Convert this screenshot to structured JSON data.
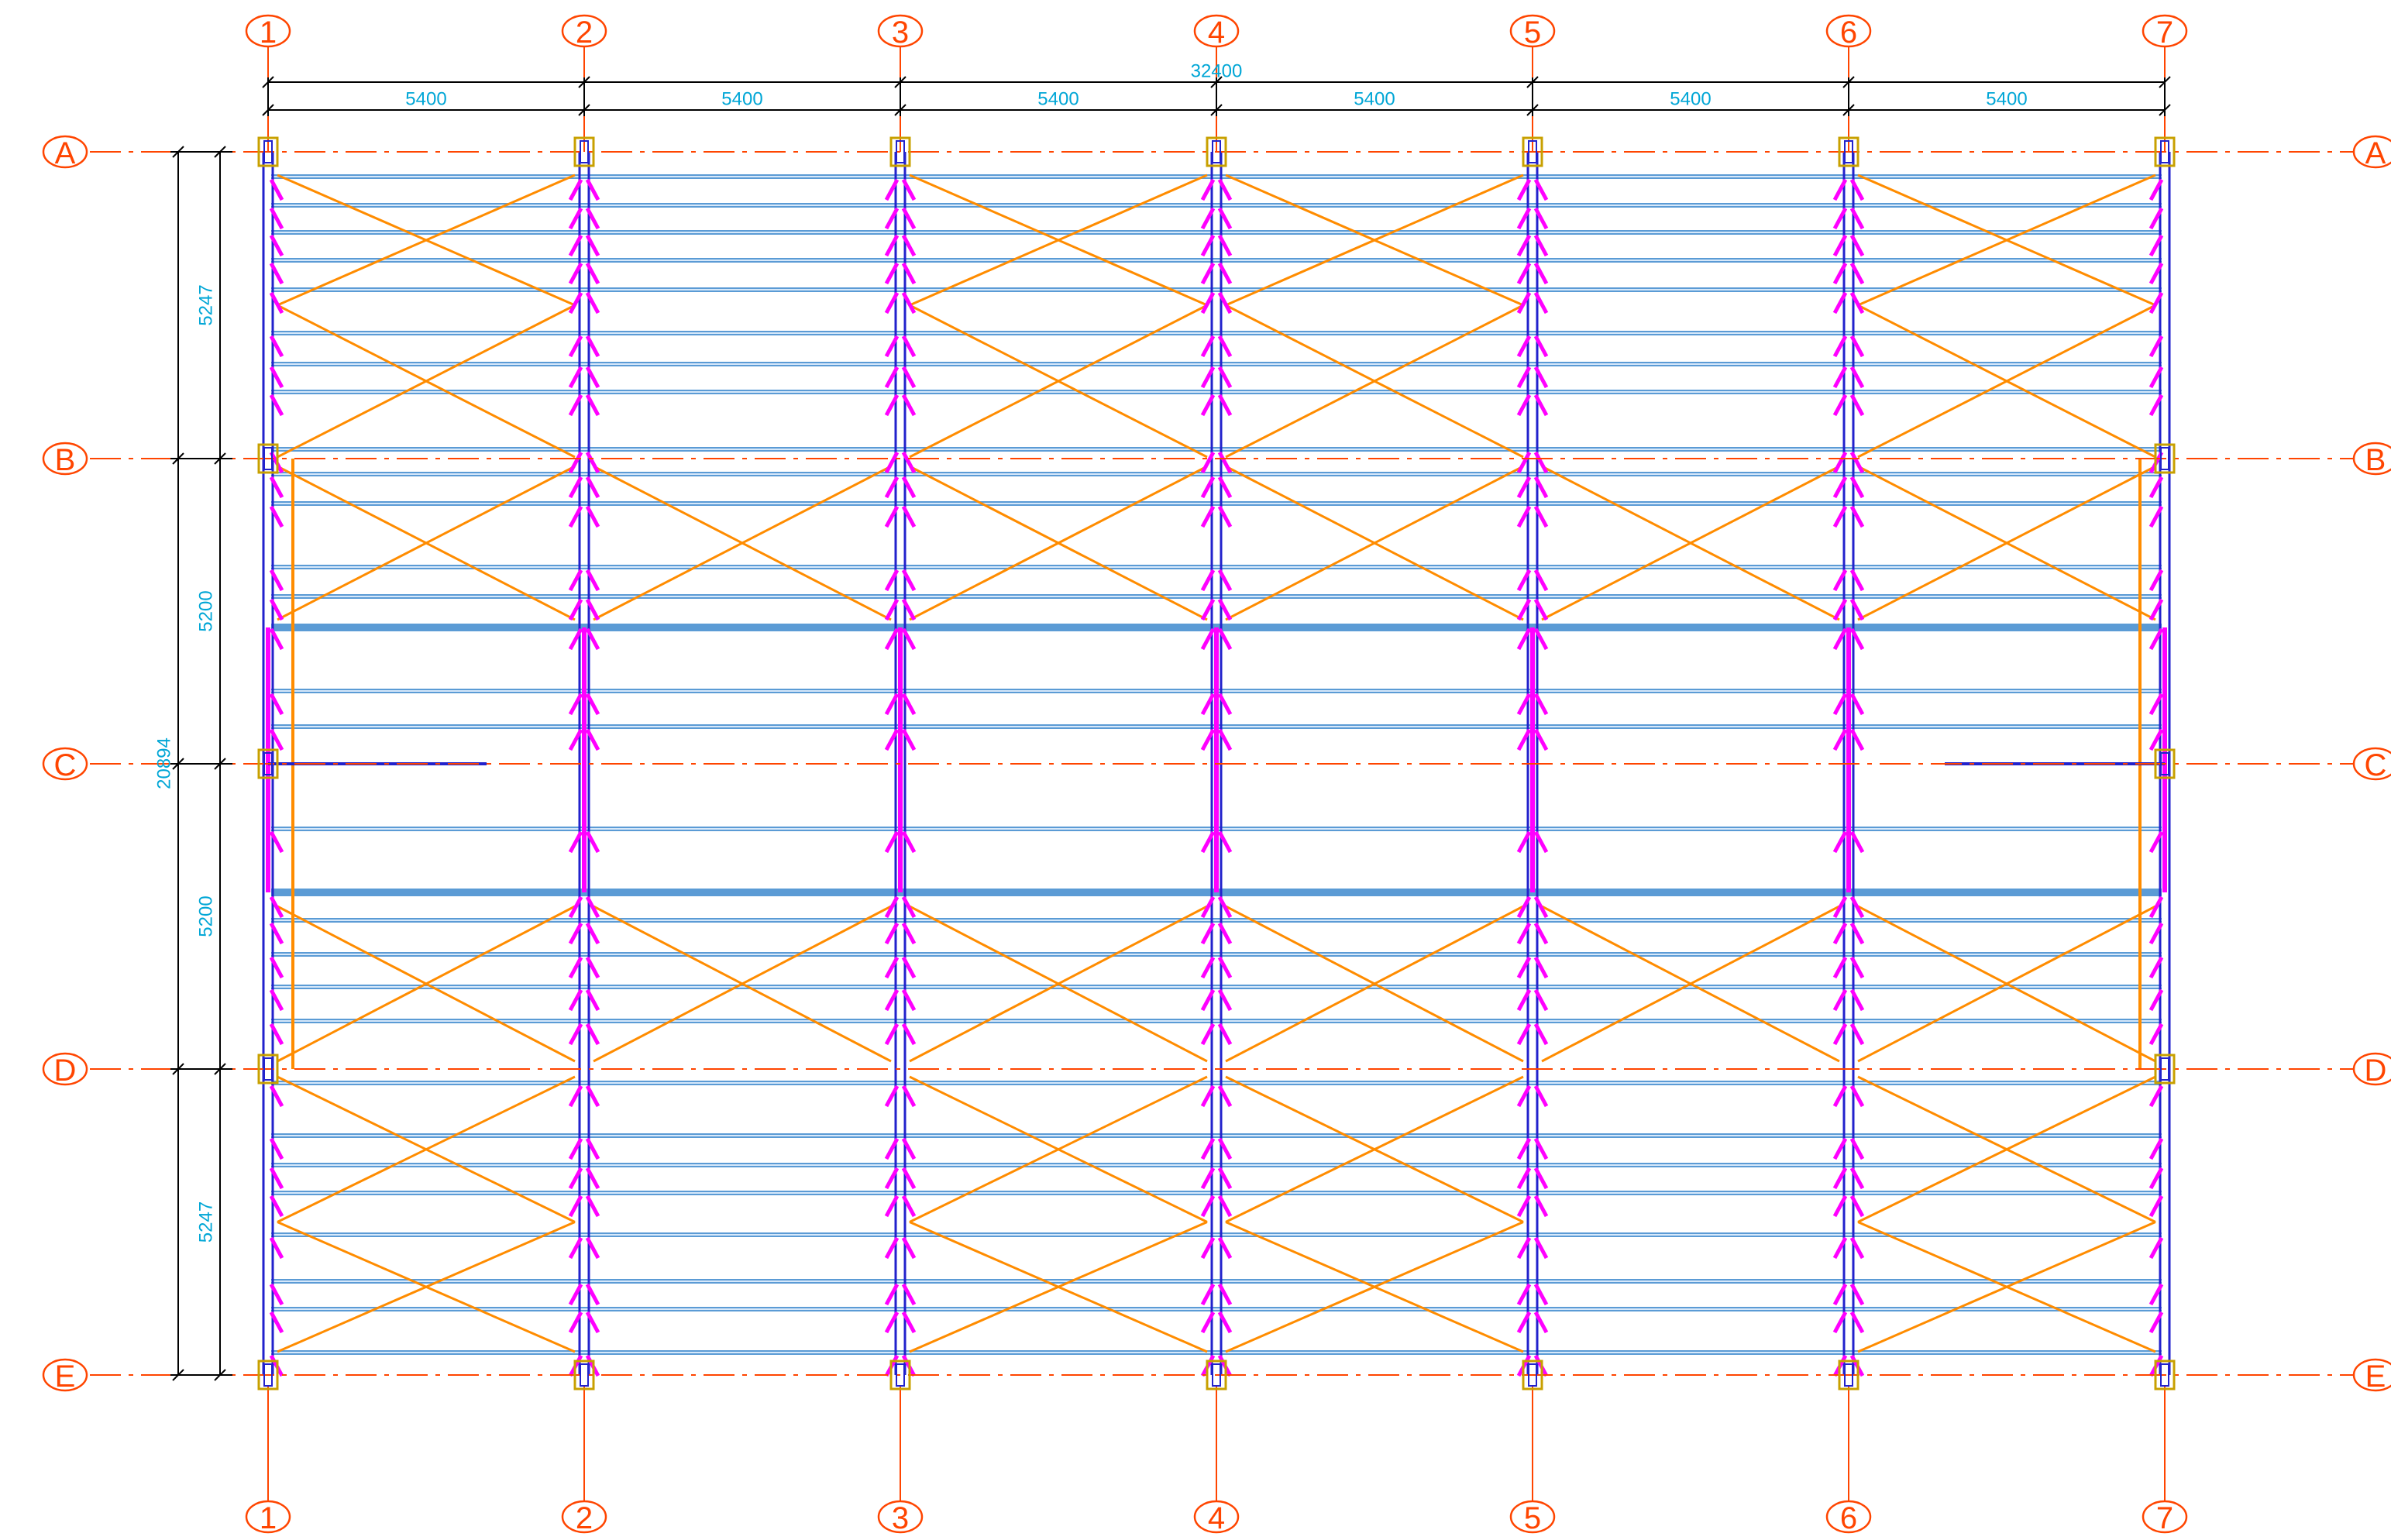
{
  "colors": {
    "grid": "#FF4500",
    "dimension": "#00A6D6",
    "dimension_line": "#000000",
    "purlin": "#5B9BD5",
    "purlin_highlight": "#D6E8FA",
    "bracing": "#FF8C00",
    "knee_brace": "#FF00FF",
    "column_frame": "#2222CC",
    "column_base": "#C8A000",
    "background": "#FFFFFF"
  },
  "grid": {
    "columns": [
      "1",
      "2",
      "3",
      "4",
      "5",
      "6",
      "7"
    ],
    "rows": [
      "A",
      "B",
      "C",
      "D",
      "E"
    ]
  },
  "dimensions": {
    "total_width": "32400",
    "bays_x": [
      "5400",
      "5400",
      "5400",
      "5400",
      "5400",
      "5400"
    ],
    "total_depth": "20894",
    "bays_y": [
      "5247",
      "5200",
      "5200",
      "5247"
    ]
  },
  "bracing_bays": {
    "rows": [
      0,
      3
    ],
    "cols": [
      0,
      2,
      3,
      5
    ],
    "spans_extra_rows": [
      1,
      2
    ]
  }
}
